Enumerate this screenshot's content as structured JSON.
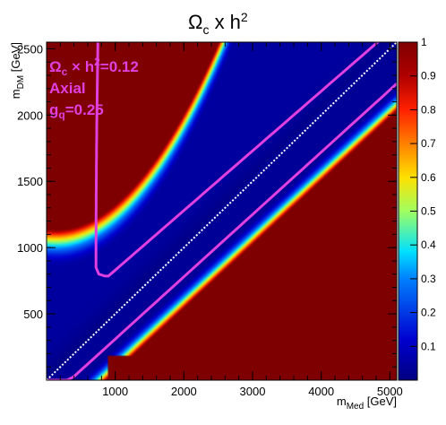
{
  "chart_data": {
    "type": "heatmap",
    "title": {
      "main": "Ω",
      "sub": "c",
      "mid": " x h",
      "sup": "2"
    },
    "xlabel": {
      "main": "m",
      "sub": "Med",
      "unit": " [GeV]"
    },
    "ylabel": {
      "main": "m",
      "sub": "DM",
      "unit": " [GeV]"
    },
    "xlim": [
      0,
      5100
    ],
    "ylim": [
      0,
      2550
    ],
    "zlim": [
      0,
      1
    ],
    "x_ticks": [
      1000,
      2000,
      3000,
      4000,
      5000
    ],
    "y_ticks": [
      500,
      1000,
      1500,
      2000,
      2500
    ],
    "z_ticks": [
      0.1,
      0.2,
      0.3,
      0.4,
      0.5,
      0.6,
      0.7,
      0.8,
      0.9,
      1
    ],
    "x_tick_labels": [
      "1000",
      "2000",
      "3000",
      "4000",
      "5000"
    ],
    "y_tick_labels": [
      "500",
      "1000",
      "1500",
      "2000",
      "2500"
    ],
    "z_tick_labels": [
      "0.1",
      "0.2",
      "0.3",
      "0.4",
      "0.5",
      "0.6",
      "0.7",
      "0.8",
      "0.9",
      "1"
    ],
    "contour_level": 0.12,
    "annotations": {
      "line1_main": "Ω",
      "line1_sub": "c",
      "line1_rest": " × h",
      "line1_sup": "2",
      "line1_val": "=0.12",
      "line2": "Axial",
      "line3_main": "g",
      "line3_sub": "q",
      "line3_val": "=0.25"
    },
    "colors": {
      "contour": "#e040e0",
      "diagonal": "#ffffff",
      "low": "#000080",
      "high": "#7f0000"
    }
  }
}
